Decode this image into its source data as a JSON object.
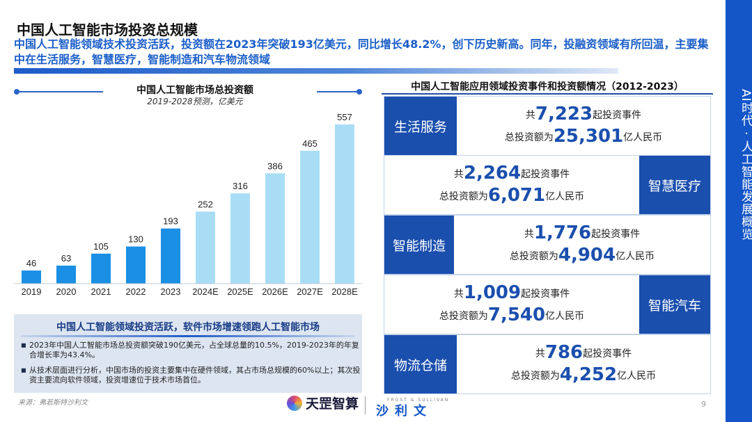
{
  "header": {
    "title": "中国人工智能市场投资总规模",
    "subtitle": "中国人工智能领域技术投资活跃，投资额在2023年突破193亿美元，同比增长48.2%，创下历史新高。同年，投融资领域有所回温，主要集中在生活服务，智慧医疗，智能制造和汽车物流领域"
  },
  "side_label": "AI时代 · 人工智能发展概览",
  "chart_data": {
    "type": "bar",
    "title": "中国人工智能市场总投资额",
    "subtitle": "2019-2028预测，亿美元",
    "categories": [
      "2019",
      "2020",
      "2021",
      "2022",
      "2023",
      "2024E",
      "2025E",
      "2026E",
      "2027E",
      "2028E"
    ],
    "values": [
      46,
      63,
      105,
      130,
      193,
      252,
      316,
      386,
      465,
      557
    ],
    "ylim": [
      0,
      557
    ],
    "grid": false,
    "colors": {
      "actual": "#1a8fe3",
      "forecast": "#a9ddf5"
    },
    "forecast_from_index": 5
  },
  "summary": {
    "heading": "中国人工智能领域投资活跃，软件市场增速领跑人工智能市场",
    "bullets": [
      "2023年中国人工智能市场总投资额突破190亿美元，占全球总量的10.5%，2019-2023年的年复合增长率为43.4%。",
      "从技术层面进行分析，中国市场的投资主要集中在硬件领域，其占市场总规模的60%以上；其次投资主要流向软件领域，投资增速位于技术市场首位。"
    ]
  },
  "source": "来源：弗若斯特沙利文",
  "page_number": "9",
  "logos": {
    "left": "天罡智算",
    "right_small": "FROST & SULLIVAN",
    "right": "沙利文"
  },
  "right_panel": {
    "title": "中国人工智能应用领域投资事件和投资额情况（2012-2023）",
    "prefix_events": "共",
    "suffix_events": "起投资事件",
    "prefix_amount": "总投资额为",
    "suffix_amount": "亿人民币",
    "rows": [
      {
        "label": "生活服务",
        "events": "7,223",
        "amount": "25,301"
      },
      {
        "label": "智慧医疗",
        "events": "2,264",
        "amount": "6,071"
      },
      {
        "label": "智能制造",
        "events": "1,776",
        "amount": "4,904"
      },
      {
        "label": "智能汽车",
        "events": "1,009",
        "amount": "7,540"
      },
      {
        "label": "物流仓储",
        "events": "786",
        "amount": "4,252"
      }
    ]
  }
}
